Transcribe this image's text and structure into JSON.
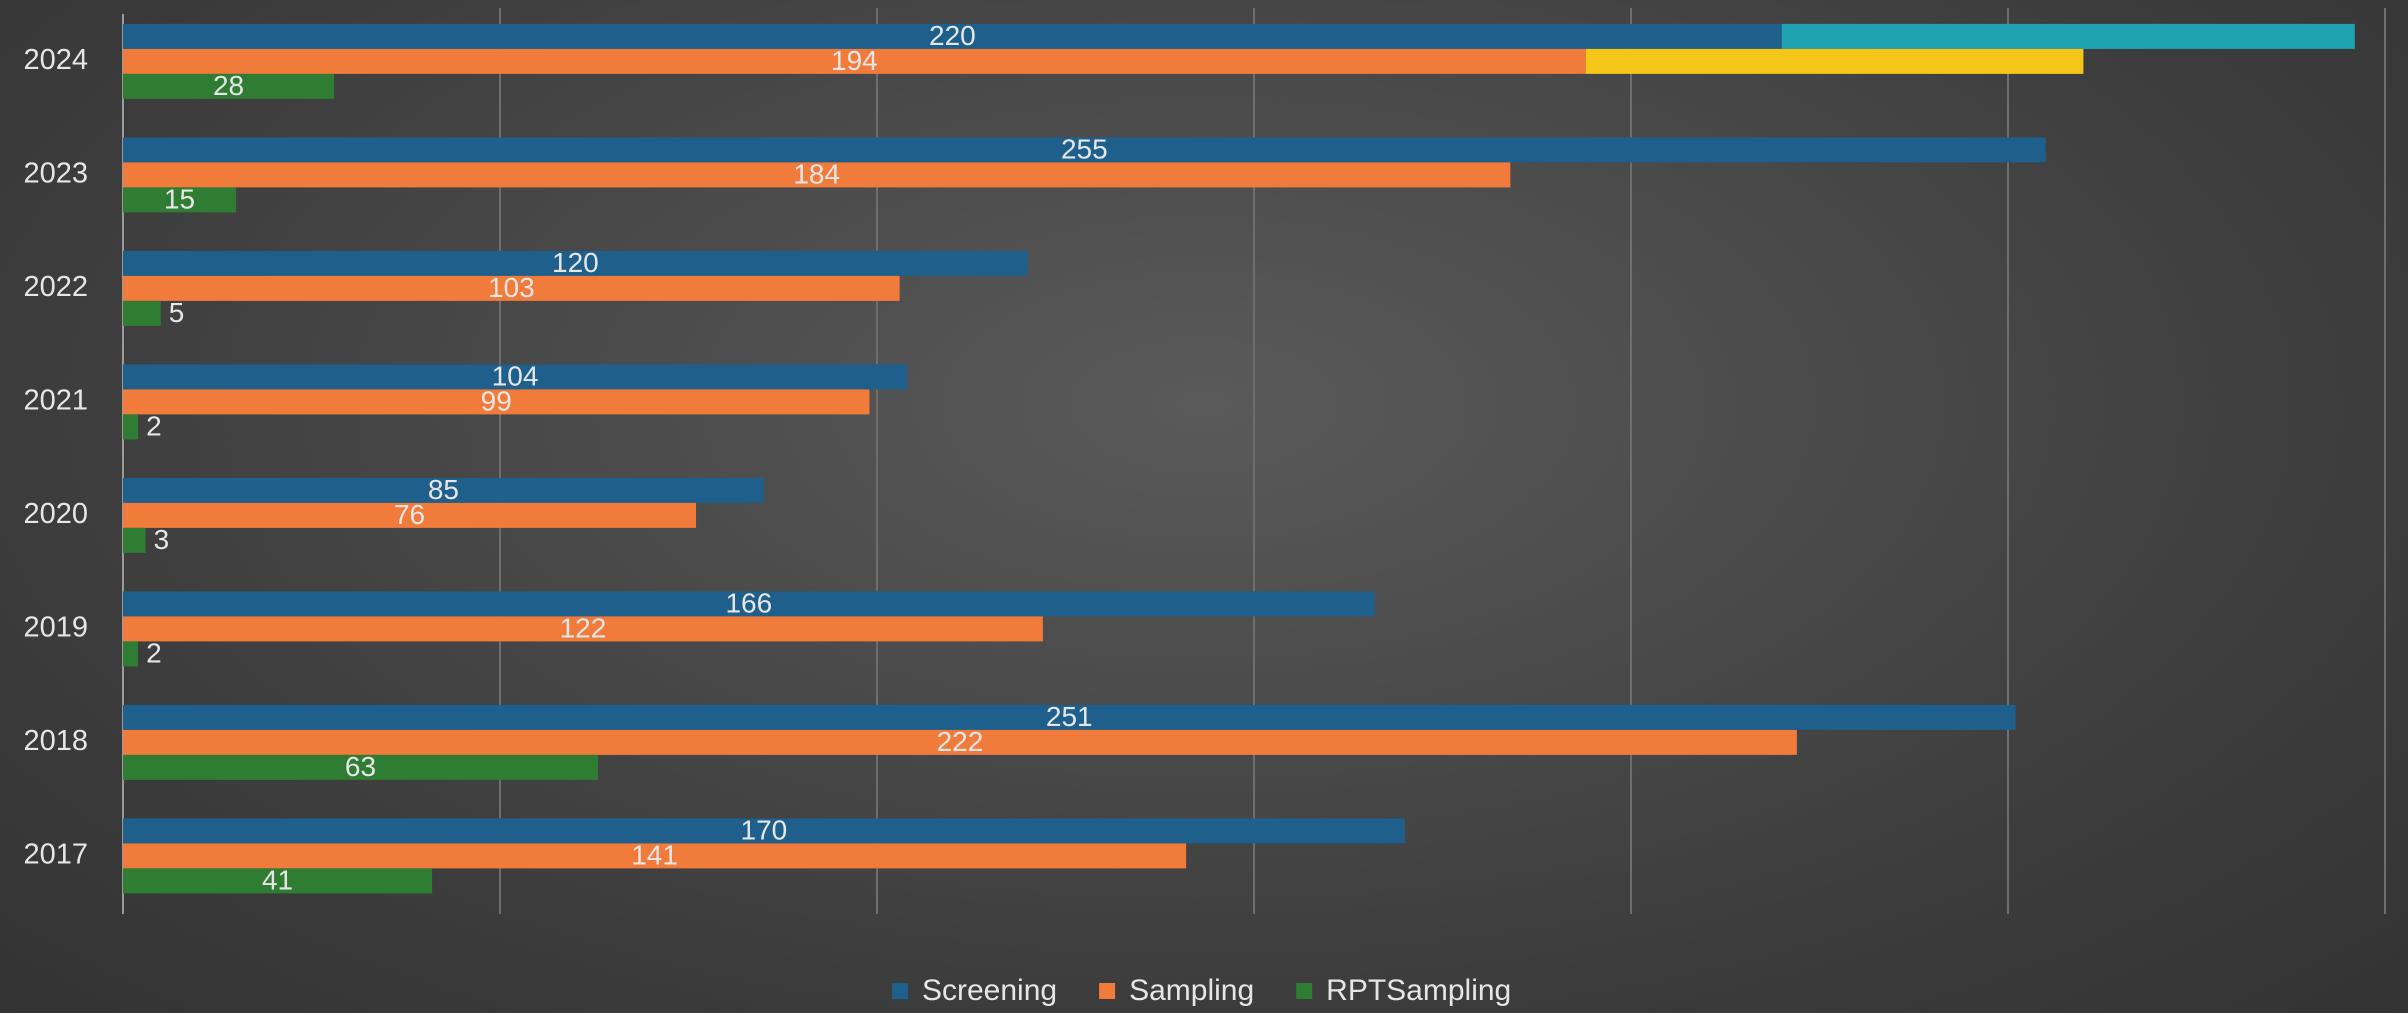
{
  "chart_data": {
    "type": "hbar",
    "categories": [
      "2017",
      "2018",
      "2019",
      "2020",
      "2021",
      "2022",
      "2023",
      "2024"
    ],
    "series": [
      {
        "name": "Screening",
        "color": "#1f5f8b",
        "values": [
          170,
          251,
          166,
          85,
          104,
          120,
          255,
          220
        ],
        "extra_values": [
          null,
          null,
          null,
          null,
          null,
          null,
          null,
          76
        ],
        "extra_color": "#1fa3b3"
      },
      {
        "name": "Sampling",
        "color": "#f07b3a",
        "values": [
          141,
          222,
          122,
          76,
          99,
          103,
          184,
          194
        ],
        "extra_values": [
          null,
          null,
          null,
          null,
          null,
          null,
          null,
          66
        ],
        "extra_color": "#f5c518"
      },
      {
        "name": "RPTSampling",
        "color": "#2e7d32",
        "values": [
          41,
          63,
          2,
          3,
          2,
          5,
          15,
          28
        ]
      }
    ],
    "xlim": [
      0,
      300
    ],
    "xticks": [
      0,
      50,
      100,
      150,
      200,
      250,
      300
    ],
    "grid": true,
    "legend": "bottom"
  }
}
